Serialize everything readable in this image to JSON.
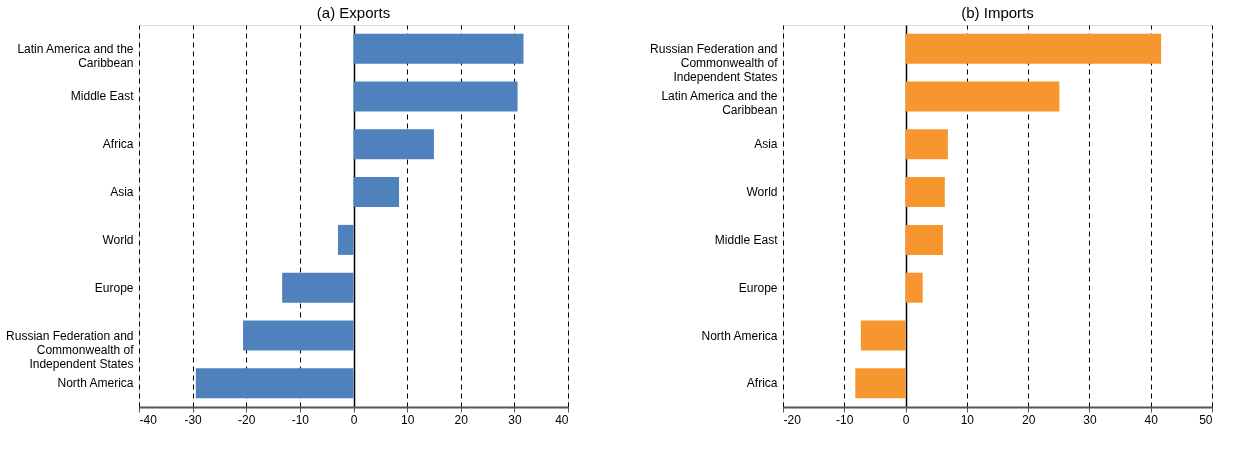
{
  "chart_data": [
    {
      "type": "bar",
      "orientation": "horizontal",
      "title": "(a) Exports",
      "categories": [
        "Latin America and the Caribbean",
        "Middle East",
        "Africa",
        "Asia",
        "World",
        "Europe",
        "Russian Federation and Commonwealth of Independent States",
        "North America"
      ],
      "values": [
        31.7,
        30.6,
        15.0,
        8.5,
        -2.9,
        -13.3,
        -20.6,
        -29.4
      ],
      "color": "#4f81bd",
      "xlim": [
        -40,
        40
      ],
      "xticks": [
        -40,
        -30,
        -20,
        -10,
        0,
        10,
        20,
        30,
        40
      ],
      "grid": "x"
    },
    {
      "type": "bar",
      "orientation": "horizontal",
      "title": "(b) Imports",
      "categories": [
        "Russian Federation and Commonwealth of Independent States",
        "Latin America and the Caribbean",
        "Asia",
        "World",
        "Middle East",
        "Europe",
        "North America",
        "Africa"
      ],
      "values": [
        41.7,
        25.1,
        6.9,
        6.4,
        6.1,
        2.8,
        -7.3,
        -8.2
      ],
      "color": "#f7962f",
      "xlim": [
        -20,
        50
      ],
      "xticks": [
        -20,
        -10,
        0,
        10,
        20,
        30,
        40,
        50
      ],
      "grid": "x"
    }
  ]
}
